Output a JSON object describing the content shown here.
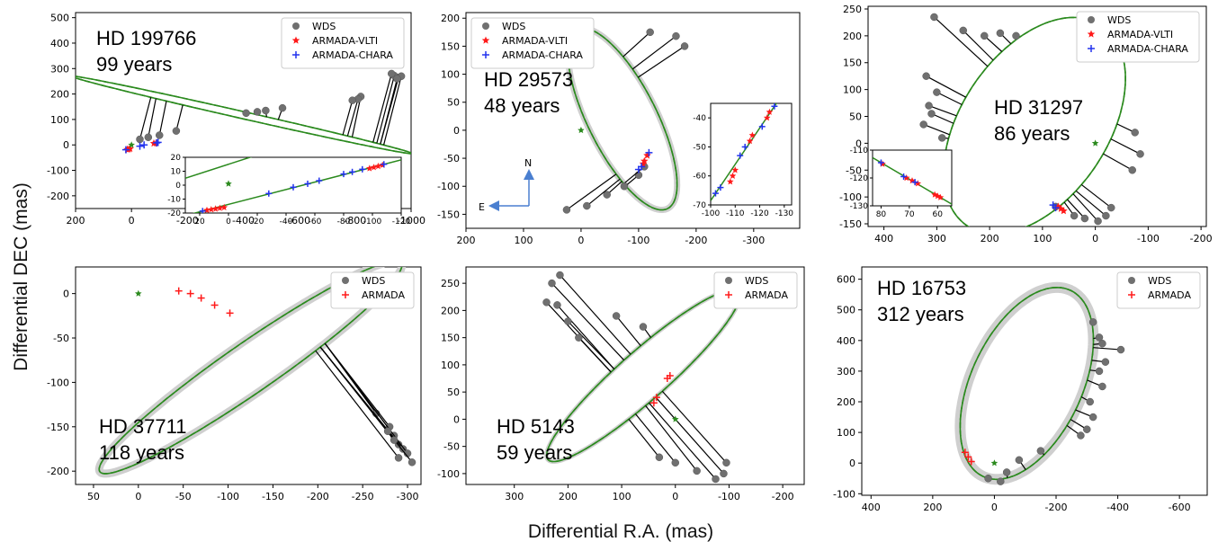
{
  "figure": {
    "xlabel": "Differential R.A. (mas)",
    "ylabel": "Differential DEC (mas)"
  },
  "colors": {
    "wds": "#707070",
    "vlti": "#ff1a1a",
    "chara": "#2233ee",
    "armada": "#ff1a1a",
    "orbit": "#2b8a1e",
    "band": "#cfcfcf",
    "residual": "#000000",
    "star": "#2b8a1e",
    "compass": "#4a7fd0"
  },
  "chart_data": [
    {
      "type": "scatter",
      "star_label": "HD 199766",
      "period_label": "99 years",
      "xlim": [
        200,
        -1000
      ],
      "ylim": [
        -250,
        520
      ],
      "xticks": [
        200,
        0,
        -200,
        -400,
        -600,
        -800,
        -1000
      ],
      "yticks": [
        -200,
        -100,
        0,
        100,
        200,
        300,
        400,
        500
      ],
      "legend": [
        "WDS",
        "ARMADA-VLTI",
        "ARMADA-CHARA"
      ],
      "legend_position": "top-right",
      "orbit": {
        "cx": -395,
        "cy": 118,
        "a": 628,
        "b": 14,
        "angle_deg": 14
      },
      "band_width": 0,
      "wds": [
        [
          -955,
          265
        ],
        [
          -940,
          272
        ],
        [
          -930,
          280
        ],
        [
          -965,
          270
        ],
        [
          -950,
          260
        ],
        [
          -820,
          190
        ],
        [
          -810,
          180
        ],
        [
          -790,
          175
        ],
        [
          -540,
          145
        ],
        [
          -480,
          135
        ],
        [
          -450,
          130
        ],
        [
          -410,
          125
        ],
        [
          -160,
          55
        ],
        [
          -100,
          38
        ],
        [
          -60,
          30
        ],
        [
          -30,
          22
        ]
      ],
      "vlti": [
        [
          15,
          -18
        ],
        [
          10,
          -17
        ],
        [
          5,
          -15
        ],
        [
          -80,
          6
        ],
        [
          -88,
          7
        ]
      ],
      "chara": [
        [
          20,
          -19
        ],
        [
          -30,
          -5
        ],
        [
          -45,
          0
        ],
        [
          -90,
          8
        ],
        [
          -95,
          10
        ]
      ],
      "inset": {
        "xlim": [
          30,
          -120
        ],
        "ylim": [
          -20,
          20
        ],
        "xticks": [
          20,
          0,
          -20,
          -40,
          -60,
          -80,
          -100,
          -120
        ],
        "yticks": [
          -20,
          -10,
          0,
          10,
          20
        ],
        "vlti": [
          [
            15,
            -18
          ],
          [
            12,
            -17.5
          ],
          [
            9,
            -17
          ],
          [
            6,
            -16.5
          ],
          [
            3,
            -16
          ],
          [
            -98,
            12
          ],
          [
            -101,
            12.8
          ],
          [
            -104,
            13.6
          ],
          [
            -107,
            14.4
          ]
        ],
        "chara": [
          [
            18,
            -18.6
          ],
          [
            -28,
            -6
          ],
          [
            -45,
            -1.5
          ],
          [
            -55,
            1
          ],
          [
            -63,
            3.2
          ],
          [
            -80,
            8
          ],
          [
            -86,
            9.5
          ],
          [
            -93,
            11.4
          ],
          [
            -108,
            15
          ]
        ]
      }
    },
    {
      "type": "scatter",
      "star_label": "HD 29573",
      "period_label": "48 years",
      "xlim": [
        200,
        -380
      ],
      "ylim": [
        -175,
        210
      ],
      "xticks": [
        200,
        100,
        0,
        -100,
        -200,
        -300
      ],
      "yticks": [
        -150,
        -100,
        -50,
        0,
        50,
        100,
        150,
        200
      ],
      "legend": [
        "WDS",
        "ARMADA-VLTI",
        "ARMADA-CHARA"
      ],
      "legend_position": "top-left",
      "orbit": {
        "cx": -72,
        "cy": 20,
        "a": 178,
        "b": 60,
        "angle_deg": 64
      },
      "band_width": 7,
      "compass": {
        "north": "N",
        "east": "E"
      },
      "wds": [
        [
          -45,
          -115
        ],
        [
          -10,
          -135
        ],
        [
          25,
          -142
        ],
        [
          -100,
          -80
        ],
        [
          -110,
          -65
        ],
        [
          -75,
          -100
        ],
        [
          -180,
          150
        ],
        [
          -165,
          168
        ],
        [
          -120,
          175
        ]
      ],
      "vlti": [
        [
          -110,
          -55
        ],
        [
          -115,
          -45
        ],
        [
          -108,
          -60
        ]
      ],
      "chara": [
        [
          -105,
          -65
        ],
        [
          -118,
          -40
        ],
        [
          -100,
          -70
        ]
      ],
      "inset": {
        "xlim": [
          -100,
          -133
        ],
        "ylim": [
          -70,
          -35
        ],
        "xticks": [
          -100,
          -110,
          -120,
          -130
        ],
        "yticks": [
          -70,
          -60,
          -50,
          -40
        ],
        "vlti": [
          [
            -108,
            -62
          ],
          [
            -109,
            -60
          ],
          [
            -110,
            -58
          ],
          [
            -116,
            -48
          ],
          [
            -117,
            -46
          ],
          [
            -123,
            -40
          ],
          [
            -124,
            -38
          ]
        ],
        "chara": [
          [
            -102,
            -66
          ],
          [
            -104,
            -64
          ],
          [
            -112,
            -53
          ],
          [
            -114,
            -50
          ],
          [
            -121,
            -43
          ],
          [
            -126,
            -36
          ]
        ]
      }
    },
    {
      "type": "scatter",
      "star_label": "HD 31297",
      "period_label": "86 years",
      "xlim": [
        430,
        -210
      ],
      "ylim": [
        -155,
        255
      ],
      "xticks": [
        400,
        300,
        200,
        100,
        0,
        -100,
        -200
      ],
      "yticks": [
        -150,
        -100,
        -50,
        0,
        50,
        100,
        150,
        200,
        250
      ],
      "legend": [
        "WDS",
        "ARMADA-VLTI",
        "ARMADA-CHARA"
      ],
      "legend_position": "top-right",
      "orbit": {
        "cx": 115,
        "cy": 33,
        "a": 226,
        "b": 138,
        "angle_deg": 125
      },
      "band_width": 0,
      "wds": [
        [
          305,
          235
        ],
        [
          320,
          125
        ],
        [
          300,
          95
        ],
        [
          315,
          70
        ],
        [
          310,
          55
        ],
        [
          325,
          35
        ],
        [
          290,
          10
        ],
        [
          250,
          210
        ],
        [
          210,
          200
        ],
        [
          180,
          205
        ],
        [
          150,
          200
        ],
        [
          -20,
          -135
        ],
        [
          -30,
          -120
        ],
        [
          -5,
          -145
        ],
        [
          20,
          -140
        ],
        [
          40,
          -135
        ],
        [
          75,
          -118
        ],
        [
          -70,
          -50
        ],
        [
          -85,
          -20
        ],
        [
          -75,
          20
        ]
      ],
      "vlti": [
        [
          70,
          -118
        ],
        [
          65,
          -122
        ],
        [
          60,
          -126
        ]
      ],
      "chara": [
        [
          80,
          -115
        ],
        [
          75,
          -120
        ]
      ],
      "inset": {
        "xlim": [
          83,
          55
        ],
        "ylim": [
          -130,
          -110
        ],
        "xticks": [
          80,
          70,
          60
        ],
        "yticks": [
          -130,
          -120,
          -110
        ],
        "vlti": [
          [
            79.5,
            -115
          ],
          [
            71,
            -120
          ],
          [
            69,
            -121
          ],
          [
            67,
            -122
          ],
          [
            61,
            -126
          ],
          [
            60,
            -126.5
          ],
          [
            59,
            -127
          ]
        ],
        "chara": [
          [
            80,
            -114.5
          ],
          [
            72,
            -119.5
          ],
          [
            68,
            -121.5
          ]
        ]
      }
    },
    {
      "type": "scatter",
      "star_label": "HD 37711",
      "period_label": "118 years",
      "xlim": [
        70,
        -315
      ],
      "ylim": [
        -215,
        30
      ],
      "xticks": [
        50,
        0,
        -50,
        -100,
        -150,
        -200,
        -250,
        -300
      ],
      "yticks": [
        -200,
        -150,
        -100,
        -50,
        0
      ],
      "legend": [
        "WDS",
        "ARMADA"
      ],
      "legend_position": "top-right",
      "orbit": {
        "cx": -125,
        "cy": -83,
        "a": 205,
        "b": 28,
        "angle_deg": -35
      },
      "band_width": 9,
      "wds": [
        [
          -265,
          -135
        ],
        [
          -280,
          -150
        ],
        [
          -285,
          -160
        ],
        [
          -290,
          -170
        ],
        [
          -295,
          -175
        ],
        [
          -300,
          -180
        ],
        [
          -290,
          -185
        ],
        [
          -305,
          -190
        ],
        [
          -285,
          -165
        ],
        [
          -278,
          -155
        ]
      ],
      "armada": [
        [
          -45,
          3
        ],
        [
          -58,
          0
        ],
        [
          -70,
          -5
        ],
        [
          -85,
          -13
        ],
        [
          -102,
          -22
        ]
      ]
    },
    {
      "type": "scatter",
      "star_label": "HD 5143",
      "period_label": "59 years",
      "xlim": [
        390,
        -240
      ],
      "ylim": [
        -120,
        280
      ],
      "xticks": [
        300,
        200,
        100,
        0,
        -100,
        -200
      ],
      "yticks": [
        -100,
        -50,
        0,
        50,
        100,
        150,
        200,
        250
      ],
      "legend": [
        "WDS",
        "ARMADA"
      ],
      "legend_position": "top-right",
      "orbit": {
        "cx": 60,
        "cy": 80,
        "a": 235,
        "b": 45,
        "angle_deg": -41
      },
      "band_width": 5,
      "wds": [
        [
          215,
          265
        ],
        [
          230,
          250
        ],
        [
          240,
          215
        ],
        [
          220,
          210
        ],
        [
          200,
          180
        ],
        [
          180,
          150
        ],
        [
          110,
          190
        ],
        [
          60,
          170
        ],
        [
          30,
          -70
        ],
        [
          0,
          -80
        ],
        [
          -40,
          -95
        ],
        [
          -90,
          -100
        ],
        [
          -95,
          -80
        ],
        [
          -75,
          -110
        ]
      ],
      "armada": [
        [
          10,
          80
        ],
        [
          15,
          75
        ],
        [
          35,
          40
        ],
        [
          40,
          30
        ]
      ]
    },
    {
      "type": "scatter",
      "star_label": "HD 16753",
      "period_label": "312 years",
      "xlim": [
        430,
        -690
      ],
      "ylim": [
        -105,
        640
      ],
      "xticks": [
        400,
        200,
        0,
        -200,
        -400,
        -600
      ],
      "yticks": [
        -100,
        0,
        100,
        200,
        300,
        400,
        500,
        600
      ],
      "legend": [
        "WDS",
        "ARMADA"
      ],
      "legend_position": "top-right",
      "orbit": {
        "cx": -105,
        "cy": 260,
        "a": 335,
        "b": 180,
        "angle_deg": -65
      },
      "band_width": 12,
      "wds": [
        [
          -320,
          460
        ],
        [
          -340,
          410
        ],
        [
          -350,
          390
        ],
        [
          -410,
          370
        ],
        [
          -360,
          330
        ],
        [
          -340,
          300
        ],
        [
          -350,
          250
        ],
        [
          -310,
          200
        ],
        [
          -320,
          150
        ],
        [
          -300,
          110
        ],
        [
          -280,
          90
        ],
        [
          -150,
          40
        ],
        [
          -80,
          10
        ],
        [
          -40,
          -30
        ],
        [
          20,
          -50
        ],
        [
          -20,
          -60
        ]
      ],
      "armada": [
        [
          95,
          35
        ],
        [
          85,
          20
        ],
        [
          75,
          5
        ]
      ]
    }
  ]
}
